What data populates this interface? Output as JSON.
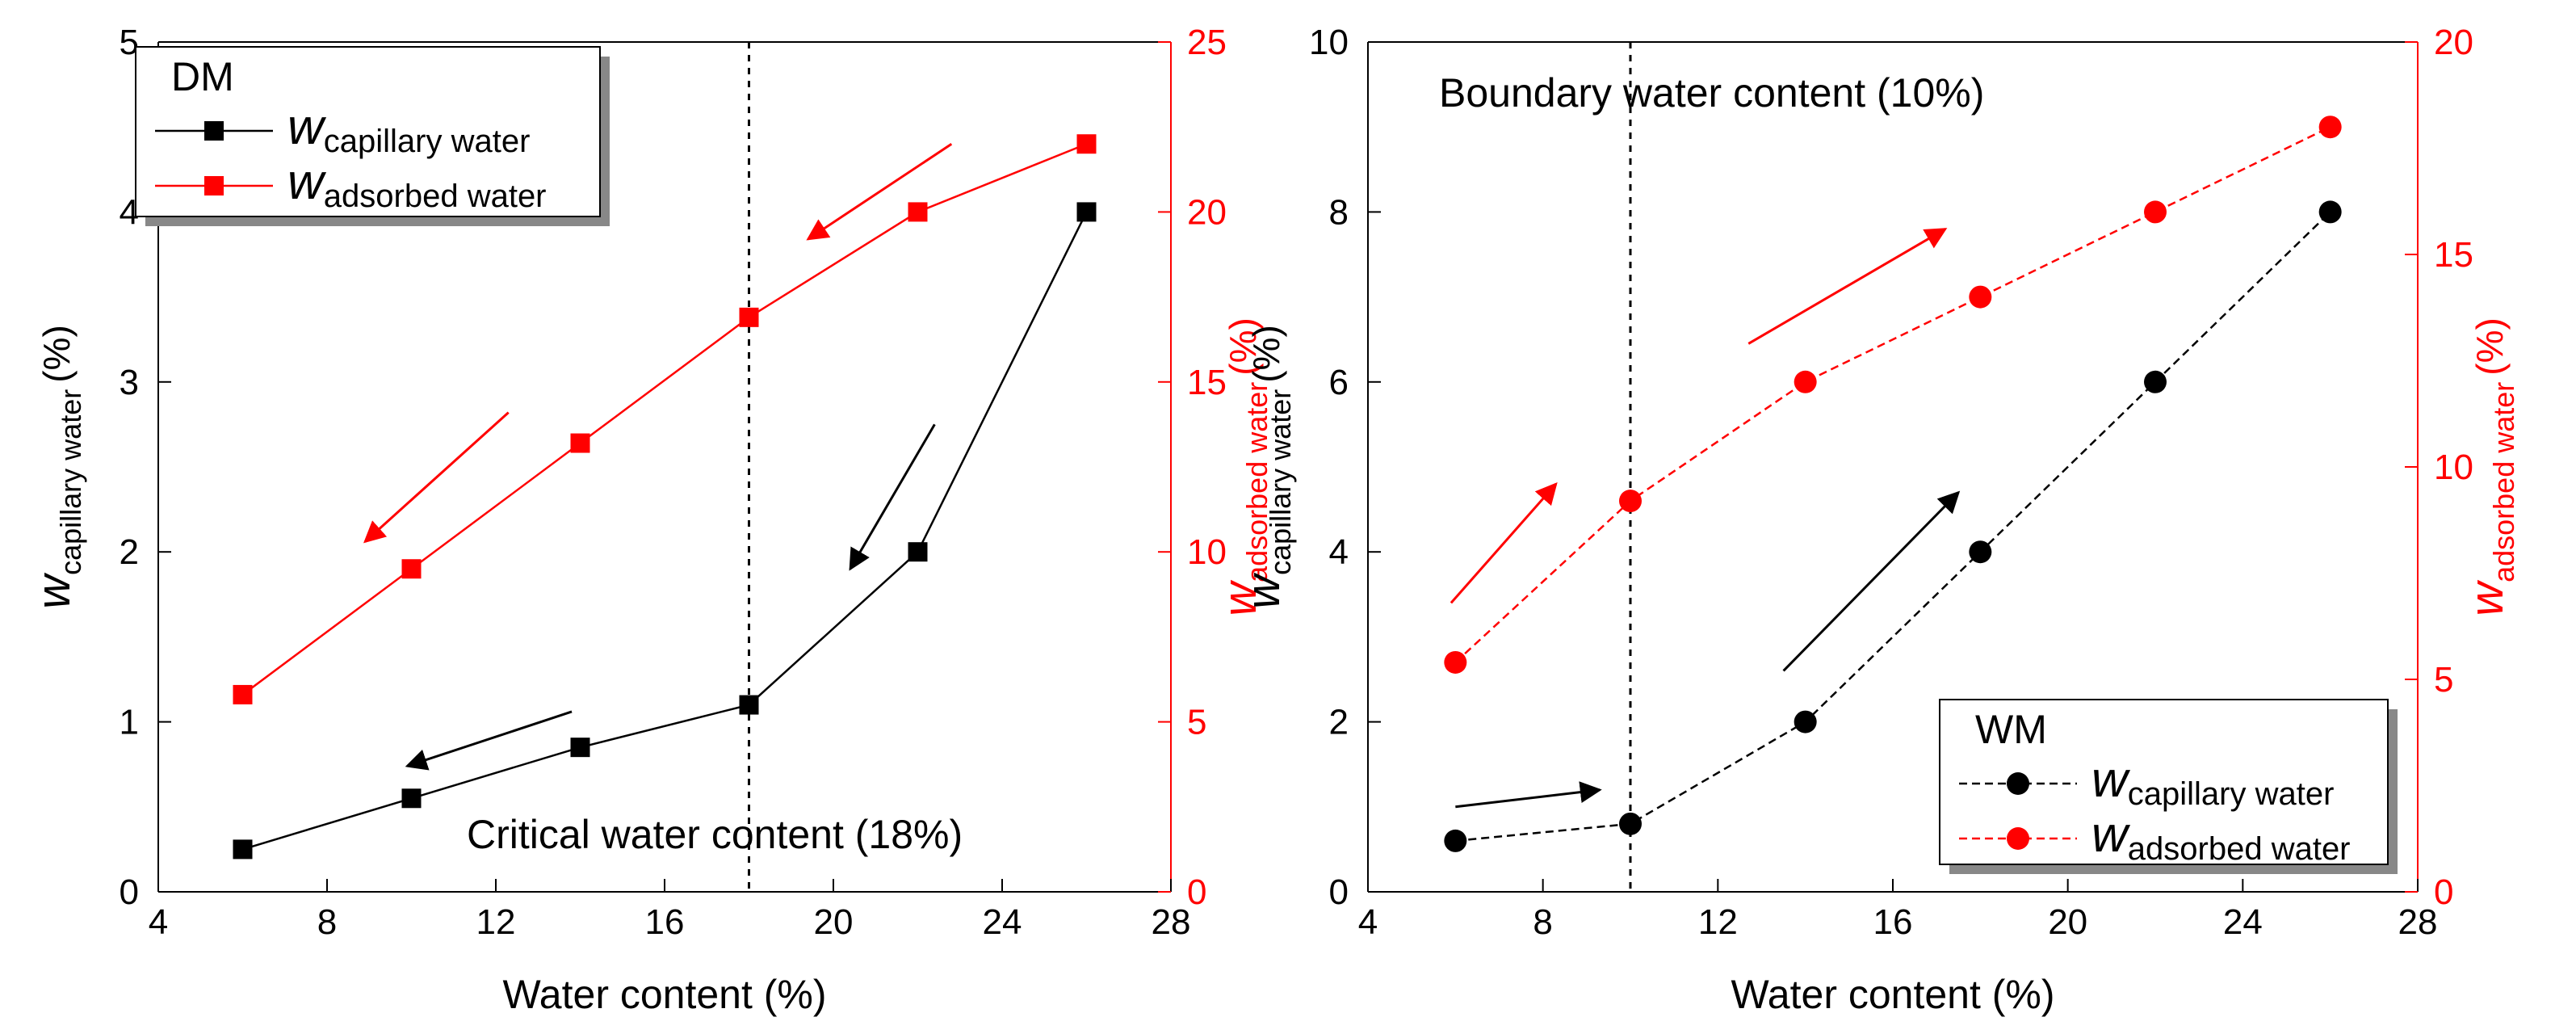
{
  "chart_data": [
    {
      "type": "line",
      "panel": "DM",
      "xlabel": "Water content (%)",
      "ylabel_left": {
        "main": "w",
        "sub": "capillary water",
        "unit": "(%)"
      },
      "ylabel_right": {
        "main": "w",
        "sub": "adsorbed water",
        "unit": "(%)"
      },
      "xlim": [
        4,
        28
      ],
      "ylim_left": [
        0,
        5
      ],
      "ylim_right": [
        0,
        25
      ],
      "x_ticks": [
        "4",
        "8",
        "12",
        "16",
        "20",
        "24",
        "28"
      ],
      "y_ticks_left": [
        "0",
        "1",
        "2",
        "3",
        "4",
        "5"
      ],
      "y_ticks_right": [
        "0",
        "5",
        "10",
        "15",
        "20",
        "25"
      ],
      "legend": {
        "title": "DM",
        "position": "top-left"
      },
      "series": [
        {
          "name": "capillary water",
          "axis": "left",
          "color": "#000000",
          "marker": "square",
          "linestyle": "solid",
          "x": [
            6,
            10,
            14,
            18,
            22,
            26
          ],
          "y": [
            0.25,
            0.55,
            0.85,
            1.1,
            2.0,
            4.0
          ]
        },
        {
          "name": "adsorbed water",
          "axis": "right",
          "color": "#ff0000",
          "marker": "square",
          "linestyle": "solid",
          "x": [
            6,
            10,
            14,
            18,
            22,
            26
          ],
          "y": [
            5.8,
            9.5,
            13.2,
            16.9,
            20.0,
            22.0
          ]
        }
      ],
      "vline": {
        "x": 18,
        "label": "Critical water content (18%)"
      },
      "arrows": [
        {
          "color": "#ff0000",
          "axis": "right",
          "from": [
            22.8,
            22.0
          ],
          "to": [
            19.4,
            19.2
          ]
        },
        {
          "color": "#ff0000",
          "axis": "right",
          "from": [
            12.3,
            14.1
          ],
          "to": [
            8.9,
            10.3
          ]
        },
        {
          "color": "#000000",
          "axis": "left",
          "from": [
            22.4,
            2.75
          ],
          "to": [
            20.4,
            1.9
          ]
        },
        {
          "color": "#000000",
          "axis": "left",
          "from": [
            13.8,
            1.06
          ],
          "to": [
            9.9,
            0.74
          ]
        }
      ]
    },
    {
      "type": "line",
      "panel": "WM",
      "xlabel": "Water content (%)",
      "ylabel_left": {
        "main": "w",
        "sub": "capillary water",
        "unit": "(%)"
      },
      "ylabel_right": {
        "main": "w",
        "sub": "adsorbed water",
        "unit": "(%)"
      },
      "xlim": [
        4,
        28
      ],
      "ylim_left": [
        0,
        10
      ],
      "ylim_right": [
        0,
        20
      ],
      "x_ticks": [
        "4",
        "8",
        "12",
        "16",
        "20",
        "24",
        "28"
      ],
      "y_ticks_left": [
        "0",
        "2",
        "4",
        "6",
        "8",
        "10"
      ],
      "y_ticks_right": [
        "0",
        "5",
        "10",
        "15",
        "20"
      ],
      "legend": {
        "title": "WM",
        "position": "bottom-right"
      },
      "series": [
        {
          "name": "capillary water",
          "axis": "left",
          "color": "#000000",
          "marker": "circle",
          "linestyle": "dashed",
          "x": [
            6,
            10,
            14,
            18,
            22,
            26
          ],
          "y": [
            0.6,
            0.8,
            2.0,
            4.0,
            6.0,
            8.0
          ]
        },
        {
          "name": "adsorbed water",
          "axis": "right",
          "color": "#ff0000",
          "marker": "circle",
          "linestyle": "dashed",
          "x": [
            6,
            10,
            14,
            18,
            22,
            26
          ],
          "y": [
            5.4,
            9.2,
            12.0,
            14.0,
            16.0,
            18.0
          ]
        }
      ],
      "vline": {
        "x": 10,
        "label": "Boundary water content (10%)"
      },
      "arrows": [
        {
          "color": "#ff0000",
          "axis": "right",
          "from": [
            5.9,
            6.8
          ],
          "to": [
            8.3,
            9.6
          ]
        },
        {
          "color": "#ff0000",
          "axis": "right",
          "from": [
            12.7,
            12.9
          ],
          "to": [
            17.2,
            15.6
          ]
        },
        {
          "color": "#000000",
          "axis": "left",
          "from": [
            6.0,
            1.0
          ],
          "to": [
            9.3,
            1.2
          ]
        },
        {
          "color": "#000000",
          "axis": "left",
          "from": [
            13.5,
            2.6
          ],
          "to": [
            17.5,
            4.7
          ]
        }
      ]
    }
  ]
}
